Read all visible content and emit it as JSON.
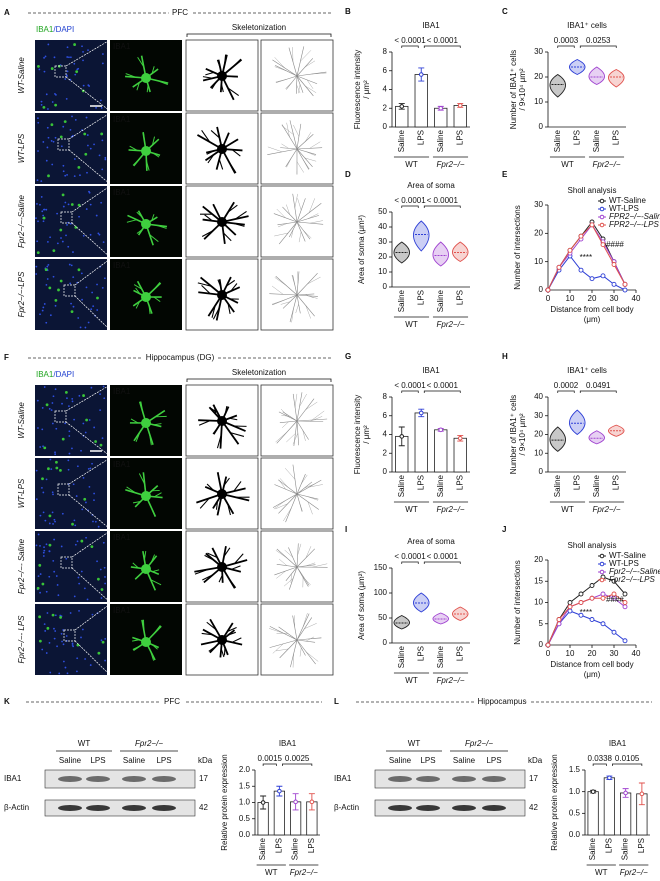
{
  "image_panels": [
    {
      "letter": "A",
      "header": "PFC",
      "stain": "IBA1",
      "counterstain": "/DAPI",
      "inset_label": "IBA1",
      "skeleton_header": "Skeletonization",
      "rows": [
        "WT-Saline",
        "WT-LPS",
        "Fpr2−/−-Saline",
        "Fpr2−/−-LPS"
      ]
    },
    {
      "letter": "F",
      "header": "Hippocampus (DG)",
      "stain": "IBA1",
      "counterstain": "/DAPI",
      "inset_label": "IBA1",
      "skeleton_header": "Skeletonization",
      "rows": [
        "WT-Saline",
        "WT-LPS",
        "Fpr2−/−- Saline",
        "Fpr2−/−- LPS"
      ]
    }
  ],
  "blots": [
    {
      "letter": "K",
      "header": "PFC",
      "groups": [
        "WT",
        "Fpr2−/−"
      ],
      "lanes": [
        "Saline",
        "LPS",
        "Saline",
        "LPS"
      ],
      "proteins": [
        "IBA1",
        "β-Actin"
      ],
      "unit": "kDa",
      "sizes": [
        "17",
        "42"
      ]
    },
    {
      "letter": "L",
      "header": "Hippocampus",
      "groups": [
        "WT",
        "Fpr2−/−"
      ],
      "lanes": [
        "Saline",
        "LPS",
        "Saline",
        "LPS"
      ],
      "proteins": [
        "IBA1",
        "β-Actin"
      ],
      "unit": "kDa",
      "sizes": [
        "17",
        "42"
      ]
    }
  ],
  "chart_data": [
    {
      "panel": "B",
      "type": "bar",
      "title": "IBA1",
      "ylabel": [
        "Fluorescence intensity",
        "/ μm²"
      ],
      "categories": [
        "Saline",
        "LPS",
        "Saline",
        "LPS"
      ],
      "groups": [
        "WT",
        "Fpr2−/−"
      ],
      "values": [
        2.2,
        5.6,
        2.0,
        2.3
      ],
      "errors": [
        0.3,
        0.7,
        0.2,
        0.2
      ],
      "colors": [
        "#222222",
        "#2e3fd6",
        "#a043d0",
        "#e0524d"
      ],
      "comparisons": [
        "< 0.0001",
        "< 0.0001"
      ],
      "ylim": [
        0,
        8
      ],
      "yticks": [
        0,
        2,
        4,
        6,
        8
      ]
    },
    {
      "panel": "C",
      "type": "violin",
      "title": "IBA1⁺ cells",
      "ylabel": [
        "Number of IBA1⁺ cells",
        "/ 9×10⁴ μm²"
      ],
      "categories": [
        "Saline",
        "LPS",
        "Saline",
        "LPS"
      ],
      "groups": [
        "WT",
        "Fpr2−/−"
      ],
      "values": [
        17,
        24,
        20,
        20
      ],
      "mins": [
        12,
        21,
        17,
        16
      ],
      "maxs": [
        21,
        27,
        24,
        23
      ],
      "colors": [
        "#222222",
        "#2e3fd6",
        "#a043d0",
        "#e0524d"
      ],
      "comparisons": [
        "0.0003",
        "0.0253"
      ],
      "ylim": [
        0,
        30
      ],
      "yticks": [
        0,
        10,
        20,
        30
      ]
    },
    {
      "panel": "D",
      "type": "violin",
      "title": "Area of soma",
      "ylabel": [
        "Area of soma (μm²)"
      ],
      "categories": [
        "Saline",
        "LPS",
        "Saline",
        "LPS"
      ],
      "groups": [
        "WT",
        "Fpr2−/−"
      ],
      "values": [
        23,
        35,
        21,
        23
      ],
      "mins": [
        16,
        24,
        14,
        17
      ],
      "maxs": [
        30,
        44,
        30,
        30
      ],
      "colors": [
        "#222222",
        "#2e3fd6",
        "#a043d0",
        "#e0524d"
      ],
      "comparisons": [
        "< 0.0001",
        "< 0.0001"
      ],
      "ylim": [
        0,
        50
      ],
      "yticks": [
        0,
        10,
        20,
        30,
        40,
        50
      ]
    },
    {
      "panel": "E",
      "type": "line",
      "title": "Sholl analysis",
      "ylabel": [
        "Number of intersections"
      ],
      "xlabel": [
        "Distance from cell body",
        "(μm)"
      ],
      "x": [
        0,
        5,
        10,
        15,
        20,
        25,
        30,
        35
      ],
      "xlim": [
        0,
        40
      ],
      "xticks": [
        0,
        10,
        20,
        30,
        40
      ],
      "ylim": [
        0,
        30
      ],
      "yticks": [
        0,
        10,
        20,
        30
      ],
      "legend": "upper right",
      "annotations": [
        "****",
        "####"
      ],
      "series": [
        {
          "name": "WT-Saline",
          "color": "#222222",
          "values": [
            0,
            8,
            14,
            19,
            24,
            18,
            10,
            2
          ]
        },
        {
          "name": "WT-LPS",
          "color": "#2e3fd6",
          "values": [
            0,
            7,
            12,
            7,
            4,
            5,
            2,
            0
          ]
        },
        {
          "name": "FPR2−/−-Saline",
          "color": "#a043d0",
          "values": [
            0,
            8,
            13,
            18,
            23,
            17,
            10,
            2
          ]
        },
        {
          "name": "FPR2−/−-LPS",
          "color": "#e0524d",
          "values": [
            0,
            8,
            14,
            19,
            23,
            16,
            9,
            2
          ]
        }
      ]
    },
    {
      "panel": "G",
      "type": "bar",
      "title": "IBA1",
      "ylabel": [
        "Fluorescence intensity",
        "/ μm²"
      ],
      "categories": [
        "Saline",
        "LPS",
        "Saline",
        "LPS"
      ],
      "groups": [
        "WT",
        "Fpr2−/−"
      ],
      "values": [
        3.8,
        6.3,
        4.5,
        3.6
      ],
      "errors": [
        1.0,
        0.4,
        0.15,
        0.3
      ],
      "colors": [
        "#222222",
        "#2e3fd6",
        "#a043d0",
        "#e0524d"
      ],
      "comparisons": [
        "< 0.0001",
        "< 0.0001"
      ],
      "ylim": [
        0,
        8
      ],
      "yticks": [
        0,
        2,
        4,
        6,
        8
      ]
    },
    {
      "panel": "H",
      "type": "violin",
      "title": "IBA1⁺ cells",
      "ylabel": [
        "Number of IBA1⁺ cells",
        "/ 9×10⁴ μm²"
      ],
      "categories": [
        "Saline",
        "LPS",
        "Saline",
        "LPS"
      ],
      "groups": [
        "WT",
        "Fpr2−/−"
      ],
      "values": [
        17,
        26,
        18,
        22
      ],
      "mins": [
        11,
        20,
        15,
        19
      ],
      "maxs": [
        24,
        33,
        22,
        25
      ],
      "colors": [
        "#222222",
        "#2e3fd6",
        "#a043d0",
        "#e0524d"
      ],
      "comparisons": [
        "0.0002",
        "0.0491"
      ],
      "ylim": [
        0,
        40
      ],
      "yticks": [
        0,
        10,
        20,
        30,
        40
      ]
    },
    {
      "panel": "I",
      "type": "violin",
      "title": "Area of soma",
      "ylabel": [
        "Area of soma (μm²)"
      ],
      "categories": [
        "Saline",
        "LPS",
        "Saline",
        "LPS"
      ],
      "groups": [
        "WT",
        "Fpr2−/−"
      ],
      "values": [
        40,
        80,
        48,
        58
      ],
      "mins": [
        28,
        62,
        38,
        45
      ],
      "maxs": [
        55,
        100,
        60,
        72
      ],
      "colors": [
        "#222222",
        "#2e3fd6",
        "#a043d0",
        "#e0524d"
      ],
      "comparisons": [
        "< 0.0001",
        "< 0.0001"
      ],
      "ylim": [
        0,
        150
      ],
      "yticks": [
        0,
        50,
        100,
        150
      ]
    },
    {
      "panel": "J",
      "type": "line",
      "title": "Sholl analysis",
      "ylabel": [
        "Number of intersections"
      ],
      "xlabel": [
        "Distance from cell body",
        "(μm)"
      ],
      "x": [
        0,
        5,
        10,
        15,
        20,
        25,
        30,
        35
      ],
      "xlim": [
        0,
        40
      ],
      "xticks": [
        0,
        10,
        20,
        30,
        40
      ],
      "ylim": [
        0,
        20
      ],
      "yticks": [
        0,
        5,
        10,
        15,
        20
      ],
      "legend": "upper right",
      "annotations": [
        "****",
        "####"
      ],
      "series": [
        {
          "name": "WT-Saline",
          "color": "#222222",
          "values": [
            0,
            6,
            10,
            12,
            14,
            16,
            15,
            12
          ]
        },
        {
          "name": "WT-LPS",
          "color": "#2e3fd6",
          "values": [
            0,
            5,
            8,
            7,
            6,
            5,
            3,
            1
          ]
        },
        {
          "name": "Fpr2−/−-Saline",
          "color": "#a043d0",
          "values": [
            0,
            5,
            9,
            10,
            11,
            12,
            11,
            9
          ]
        },
        {
          "name": "Fpr2−/−-LPS",
          "color": "#e0524d",
          "values": [
            0,
            6,
            9,
            10,
            11,
            11,
            12,
            10
          ]
        }
      ]
    },
    {
      "type": "bar",
      "title": "IBA1",
      "ylabel": [
        "Relative protein expression"
      ],
      "categories": [
        "Saline",
        "LPS",
        "Saline",
        "LPS"
      ],
      "groups": [
        "WT",
        "Fpr2−/−"
      ],
      "values": [
        1.0,
        1.35,
        1.02,
        1.02
      ],
      "errors": [
        0.2,
        0.15,
        0.25,
        0.25
      ],
      "colors": [
        "#222222",
        "#2e3fd6",
        "#a043d0",
        "#e0524d"
      ],
      "comparisons": [
        "0.0015",
        "0.0025"
      ],
      "ylim": [
        0,
        2
      ],
      "yticks": [
        {
          "value": 0,
          "label": "0.0"
        },
        0.5,
        {
          "value": 1,
          "label": "1.0"
        },
        1.5,
        {
          "value": 2,
          "label": "2.0"
        }
      ]
    },
    {
      "type": "bar",
      "title": "IBA1",
      "ylabel": [
        "Relative protein expression"
      ],
      "categories": [
        "Saline",
        "LPS",
        "Saline",
        "LPS"
      ],
      "groups": [
        "WT",
        "Fpr2−/−"
      ],
      "values": [
        1.0,
        1.32,
        0.97,
        0.95
      ],
      "errors": [
        0.03,
        0.04,
        0.1,
        0.25
      ],
      "colors": [
        "#222222",
        "#2e3fd6",
        "#a043d0",
        "#e0524d"
      ],
      "comparisons": [
        "0.0338",
        "0.0105"
      ],
      "ylim": [
        0,
        1.5
      ],
      "yticks": [
        {
          "value": 0,
          "label": "0.0"
        },
        0.5,
        {
          "value": 1,
          "label": "1.0"
        },
        1.5
      ]
    }
  ]
}
